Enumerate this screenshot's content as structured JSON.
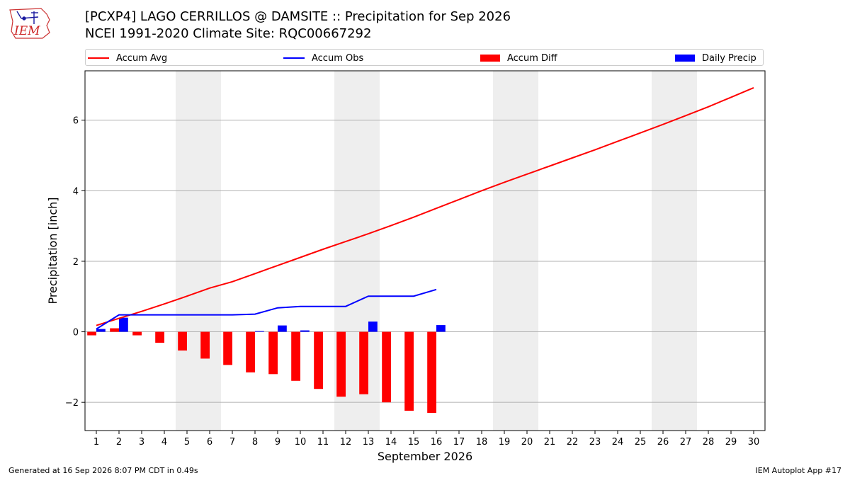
{
  "header": {
    "title_line1": "[PCXP4] LAGO CERRILLOS @ DAMSITE :: Precipitation for Sep 2026",
    "title_line2": "NCEI 1991-2020 Climate Site: RQC00667292",
    "logo_text": "IEM"
  },
  "legend": {
    "items": [
      {
        "label": "Accum Avg",
        "color": "#ff0000",
        "kind": "line"
      },
      {
        "label": "Accum Obs",
        "color": "#0000ff",
        "kind": "line"
      },
      {
        "label": "Accum Diff",
        "color": "#ff0000",
        "kind": "bar"
      },
      {
        "label": "Daily Precip",
        "color": "#0000ff",
        "kind": "bar"
      }
    ]
  },
  "footer": {
    "generated": "Generated at 16 Sep 2026 8:07 PM CDT in 0.49s",
    "app": "IEM Autoplot App #17"
  },
  "colors": {
    "avg": "#ff0000",
    "obs": "#0000ff",
    "weekend_shade": "#eeeeee",
    "grid": "#b0b0b0"
  },
  "chart_data": {
    "type": "bar",
    "title": "[PCXP4] LAGO CERRILLOS @ DAMSITE :: Precipitation for Sep 2026",
    "xlabel": "September 2026",
    "ylabel": "Precipitation [inch]",
    "x": [
      1,
      2,
      3,
      4,
      5,
      6,
      7,
      8,
      9,
      10,
      11,
      12,
      13,
      14,
      15,
      16,
      17,
      18,
      19,
      20,
      21,
      22,
      23,
      24,
      25,
      26,
      27,
      28,
      29,
      30
    ],
    "xlim": [
      0.5,
      30.5
    ],
    "ylim": [
      -2.8,
      7.4
    ],
    "yticks": [
      -2,
      0,
      2,
      4,
      6
    ],
    "ytick_labels": [
      "−2",
      "0",
      "2",
      "4",
      "6"
    ],
    "grid": "horizontal",
    "shaded_days": [
      [
        5,
        6
      ],
      [
        12,
        13
      ],
      [
        19,
        20
      ],
      [
        26,
        27
      ]
    ],
    "series": [
      {
        "name": "Accum Avg",
        "kind": "line",
        "x": [
          1,
          2,
          3,
          4,
          5,
          6,
          7,
          8,
          9,
          10,
          11,
          12,
          13,
          14,
          15,
          16,
          17,
          18,
          19,
          20,
          21,
          22,
          23,
          24,
          25,
          26,
          27,
          28,
          29,
          30
        ],
        "values": [
          0.18,
          0.38,
          0.58,
          0.79,
          1.01,
          1.24,
          1.42,
          1.65,
          1.88,
          2.11,
          2.34,
          2.56,
          2.78,
          3.01,
          3.25,
          3.5,
          3.75,
          4.0,
          4.24,
          4.47,
          4.7,
          4.93,
          5.16,
          5.4,
          5.64,
          5.88,
          6.13,
          6.38,
          6.65,
          6.92
        ]
      },
      {
        "name": "Accum Obs",
        "kind": "line",
        "x": [
          1,
          2,
          3,
          4,
          5,
          6,
          7,
          8,
          9,
          10,
          11,
          12,
          13,
          14,
          15,
          16
        ],
        "values": [
          0.08,
          0.48,
          0.48,
          0.48,
          0.48,
          0.48,
          0.48,
          0.5,
          0.68,
          0.72,
          0.72,
          0.72,
          1.01,
          1.01,
          1.01,
          1.2
        ]
      },
      {
        "name": "Accum Diff",
        "kind": "bar",
        "x": [
          1,
          2,
          3,
          4,
          5,
          6,
          7,
          8,
          9,
          10,
          11,
          12,
          13,
          14,
          15,
          16
        ],
        "values": [
          -0.1,
          0.1,
          -0.1,
          -0.31,
          -0.53,
          -0.76,
          -0.94,
          -1.15,
          -1.2,
          -1.39,
          -1.62,
          -1.84,
          -1.77,
          -2.0,
          -2.24,
          -2.3
        ]
      },
      {
        "name": "Daily Precip",
        "kind": "bar",
        "x": [
          1,
          2,
          3,
          4,
          5,
          6,
          7,
          8,
          9,
          10,
          11,
          12,
          13,
          14,
          15,
          16
        ],
        "values": [
          0.08,
          0.4,
          0,
          0,
          0,
          0,
          0,
          0.02,
          0.18,
          0.04,
          0,
          0,
          0.29,
          0,
          0,
          0.19
        ]
      }
    ]
  }
}
